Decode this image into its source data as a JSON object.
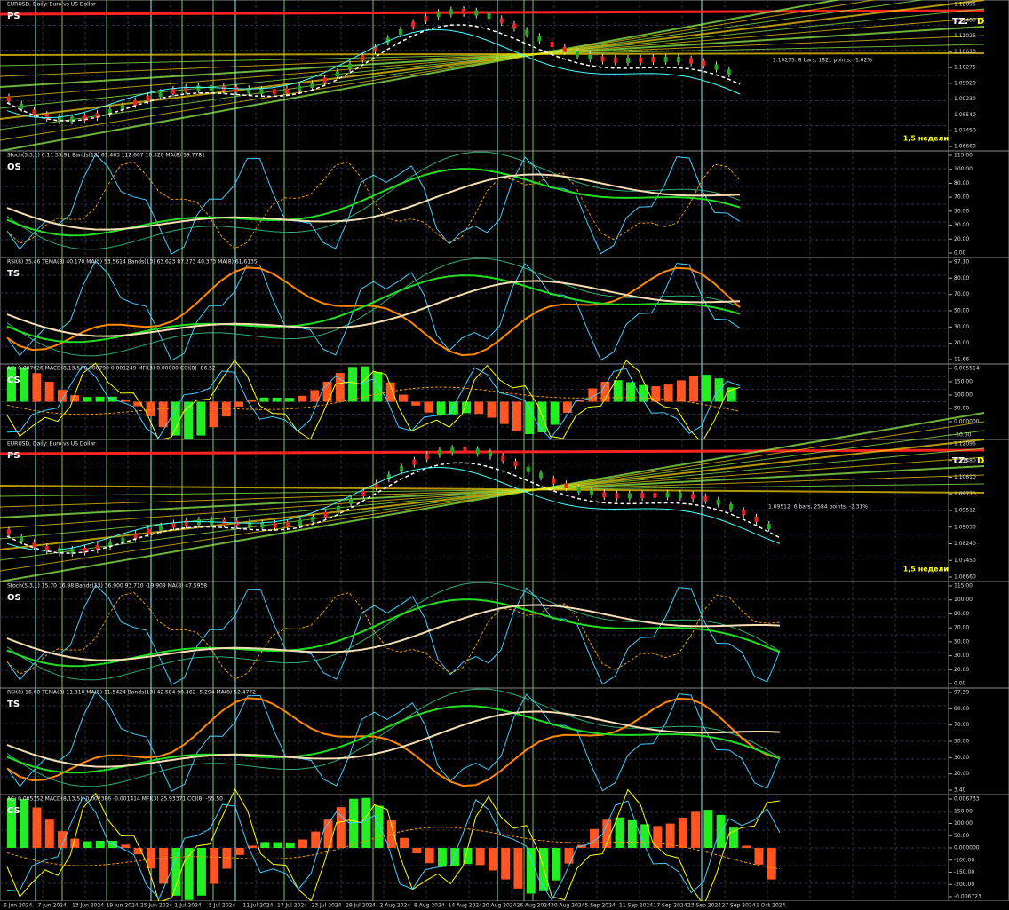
{
  "panels": [
    {
      "kind": "price",
      "label": "PS",
      "header": "EURUSD, Daily: Euro vs US Dollar",
      "tz": "TZ:",
      "d": "D",
      "weeks": "1,5 недели",
      "annotation": "1.10275: 8 bars, 1821 points, -1.62%",
      "ticks": [
        "1.12096",
        "1.11480",
        "1.11026",
        "1.10610",
        "1.10275",
        "1.09920",
        "1.09230",
        "1.08540",
        "1.07450",
        "1.06660"
      ]
    },
    {
      "kind": "os",
      "label": "OS",
      "header": "Stoch(5,3,1) 6.11 35.91 Bands(13) 61.463 112.607 10.320 MA(8) 59.7781",
      "ticks": [
        "115.00",
        "100.00",
        "80.00",
        "70.00",
        "50.00",
        "30.00",
        "20.00",
        "0.00"
      ]
    },
    {
      "kind": "ts",
      "label": "TS",
      "header": "RSI(8) 35.46 TEMA(8) 40.170 MA(5) 53.5614 Bands(13) 63.623 87.273 40.373 MA(8) 61.6135",
      "ticks": [
        "97.10",
        "80.00",
        "70.00",
        "50.00",
        "30.00",
        "20.00",
        "11.66"
      ]
    },
    {
      "kind": "cs",
      "label": "CS",
      "header": "AC: 0.007626 MACD(8,13,5) 0.000790 0.001249 MFI(3) 0.00000 CCI(8) -86.52",
      "ticks": [
        "0.005514",
        "150.00",
        "100.00",
        "50.00",
        "0.000000",
        "-50.00"
      ]
    },
    {
      "kind": "price",
      "label": "PS",
      "header": "EURUSD, Daily: Euro vs US Dollar",
      "tz": "TZ:",
      "d": "D",
      "weeks": "1,5 недели",
      "annotation": "1.09512: 6 bars, 2584 points, -2.31%",
      "ticks": [
        "1.12096",
        "1.11480",
        "1.10610",
        "1.09770",
        "1.09512",
        "1.09030",
        "1.08240",
        "1.07450",
        "1.06660"
      ]
    },
    {
      "kind": "os",
      "label": "OS",
      "header": "Stoch(5,3,1) 15.70 16.98 Bands(13) 36.900 93.710 -19.909 MA(8) 47.5958",
      "ticks": [
        "115.00",
        "100.00",
        "80.00",
        "70.00",
        "50.00",
        "30.00",
        "20.00",
        "0.00"
      ]
    },
    {
      "kind": "ts",
      "label": "TS",
      "header": "RSI(8) 16.60 TEMA(8) 11.810 MA(5) 11.5424 Bands(13) 42.584 90.462 -5.294 MA(8) 52.4772",
      "ticks": [
        "97.39",
        "80.00",
        "70.00",
        "50.00",
        "30.00",
        "20.00",
        "3.40"
      ]
    },
    {
      "kind": "cs",
      "label": "CS",
      "header": "AC: 0.005352 MACD(8,13,5) -0.002386 -0.001414 MFI(3) 25.93371 CCI(8) -55.50",
      "ticks": [
        "0.006733",
        "150.00",
        "100.00",
        "50.00",
        "0.000000",
        "-100.00",
        "-150.00",
        "-200.00",
        "-0.006723"
      ]
    }
  ],
  "dates": [
    "6 Jun 2024",
    "7 Jun 2024",
    "13 Jun 2024",
    "19 Jun 2024",
    "25 Jun 2024",
    "1 Jul 2024",
    "5 Jul 2024",
    "11 Jul 2024",
    "17 Jul 2024",
    "23 Jul 2024",
    "29 Jul 2024",
    "2 Aug 2024",
    "8 Aug 2024",
    "14 Aug 2024",
    "20 Aug 2024",
    "26 Aug 2024",
    "30 Aug 2024",
    "5 Sep 2024",
    "11 Sep 2024",
    "17 Sep 2024",
    "23 Sep 2024",
    "27 Sep 2024",
    "1 Oct 2024"
  ]
}
